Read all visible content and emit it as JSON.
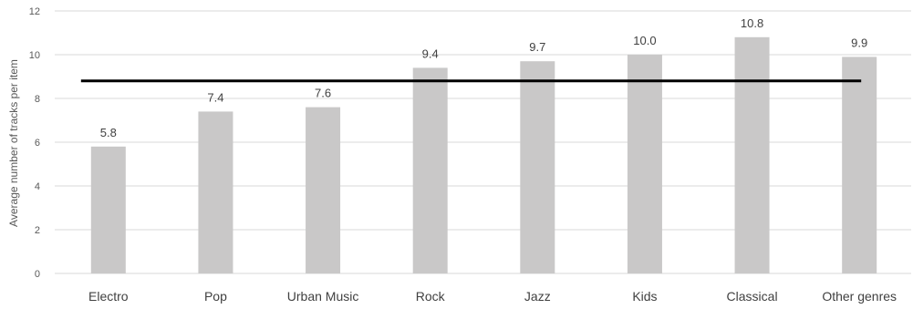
{
  "chart_data": {
    "type": "bar",
    "categories": [
      "Electro",
      "Pop",
      "Urban Music",
      "Rock",
      "Jazz",
      "Kids",
      "Classical",
      "Other genres"
    ],
    "values": [
      5.8,
      7.4,
      7.6,
      9.4,
      9.7,
      10.0,
      10.8,
      9.9
    ],
    "data_labels": [
      "5.8",
      "7.4",
      "7.6",
      "9.4",
      "9.7",
      "10.0",
      "10.8",
      "9.9"
    ],
    "ylabel": "Average number of tracks per item",
    "ylim": [
      0,
      12
    ],
    "yticks": [
      0,
      2,
      4,
      6,
      8,
      10,
      12
    ],
    "grid": true,
    "reference_line": {
      "value": 8.8
    },
    "colors": {
      "bar": "#c9c8c8",
      "grid": "#d9d9d9",
      "reference_line": "#000000"
    }
  }
}
